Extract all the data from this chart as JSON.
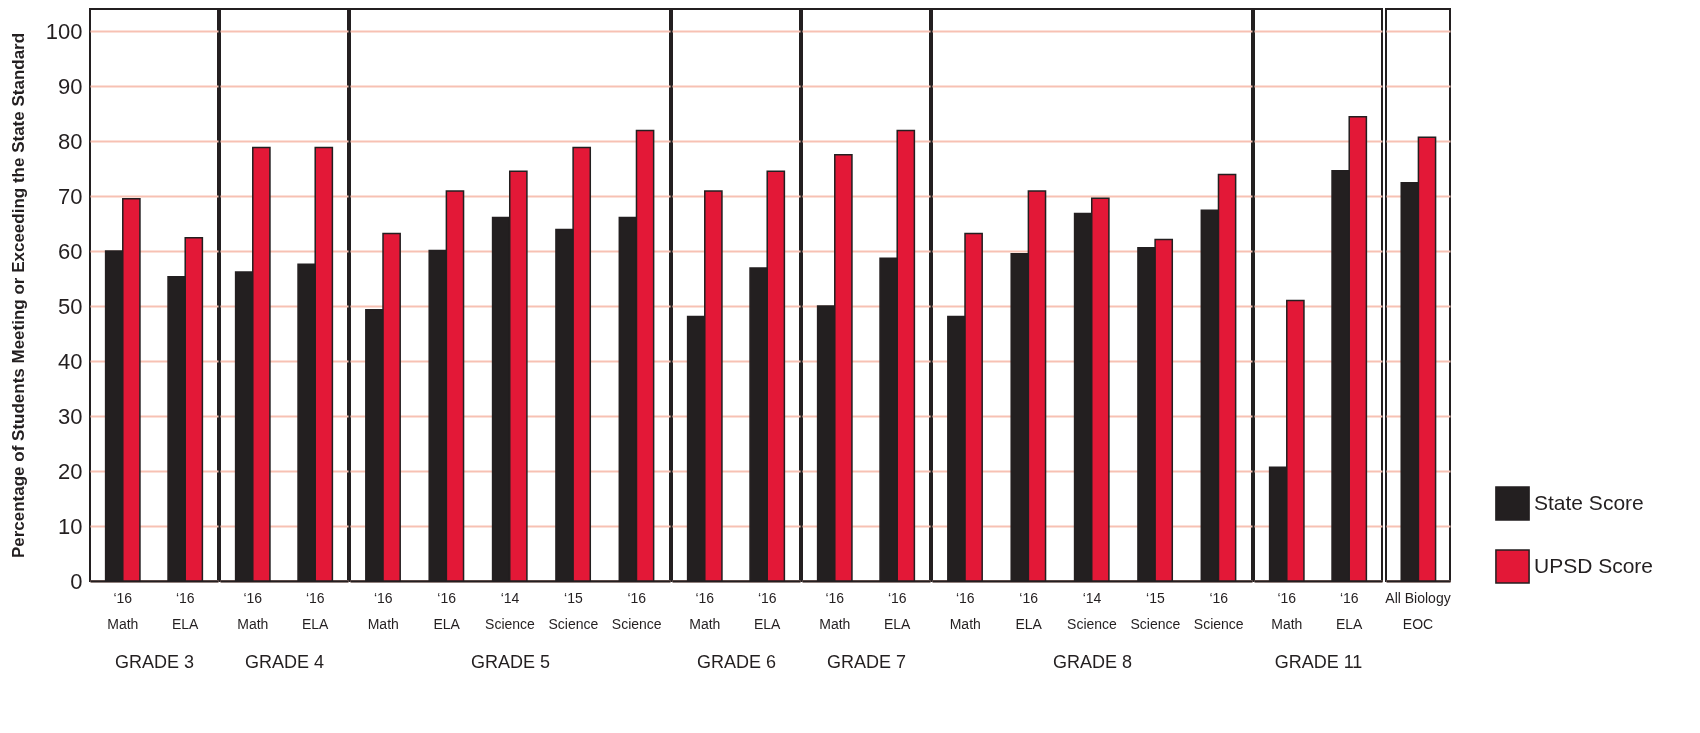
{
  "chart_data": [
    {
      "type": "bar",
      "xlabel": "GRADE 3",
      "ylabel": "Percentage of Students Meeting or Exceeding the State Standard",
      "categories": [
        "‘16\nMath",
        "‘16\nELA"
      ],
      "ylim": [
        0,
        104
      ],
      "yticks": [
        0,
        10,
        20,
        30,
        40,
        50,
        60,
        70,
        80,
        90,
        100
      ],
      "grid": "y",
      "series": [
        {
          "color": "#231f20",
          "values": [
            60,
            55.3
          ]
        },
        {
          "color": "#e31837",
          "values": [
            69.5,
            62.4
          ]
        }
      ]
    },
    {
      "type": "bar",
      "xlabel": "GRADE 4",
      "categories": [
        "‘16\nMath",
        "‘16\nELA"
      ],
      "ylim": [
        0,
        104
      ],
      "yticks": [
        0,
        10,
        20,
        30,
        40,
        50,
        60,
        70,
        80,
        90,
        100
      ],
      "grid": "y",
      "tick_labels": "x",
      "series": [
        {
          "color": "#231f20",
          "values": [
            56.2,
            57.6
          ]
        },
        {
          "color": "#e31837",
          "values": [
            78.8,
            78.8
          ]
        }
      ]
    },
    {
      "type": "bar",
      "xlabel": "GRADE 5",
      "categories": [
        "‘16\nMath",
        "‘16\nELA",
        "‘14\nScience",
        "‘15\nScience",
        "‘16\nScience"
      ],
      "ylim": [
        0,
        104
      ],
      "yticks": [
        0,
        10,
        20,
        30,
        40,
        50,
        60,
        70,
        80,
        90,
        100
      ],
      "grid": "y",
      "tick_labels": "x",
      "series": [
        {
          "color": "#231f20",
          "values": [
            49.3,
            60.1,
            66.1,
            63.9,
            66.1
          ]
        },
        {
          "color": "#e31837",
          "values": [
            63.2,
            70.9,
            74.5,
            78.8,
            81.9
          ]
        }
      ]
    },
    {
      "type": "bar",
      "xlabel": "GRADE 6",
      "categories": [
        "‘16\nMath",
        "‘16\nELA"
      ],
      "ylim": [
        0,
        104
      ],
      "yticks": [
        0,
        10,
        20,
        30,
        40,
        50,
        60,
        70,
        80,
        90,
        100
      ],
      "grid": "y",
      "tick_labels": "x",
      "series": [
        {
          "color": "#231f20",
          "values": [
            48.1,
            56.9
          ]
        },
        {
          "color": "#e31837",
          "values": [
            70.9,
            74.5
          ]
        }
      ]
    },
    {
      "type": "bar",
      "xlabel": "GRADE 7",
      "categories": [
        "‘16\nMath",
        "‘16\nELA"
      ],
      "ylim": [
        0,
        104
      ],
      "yticks": [
        0,
        10,
        20,
        30,
        40,
        50,
        60,
        70,
        80,
        90,
        100
      ],
      "grid": "y",
      "tick_labels": "x",
      "series": [
        {
          "color": "#231f20",
          "values": [
            50,
            58.7
          ]
        },
        {
          "color": "#e31837",
          "values": [
            77.5,
            81.9
          ]
        }
      ]
    },
    {
      "type": "bar",
      "xlabel": "GRADE 8",
      "categories": [
        "‘16\nMath",
        "‘16\nELA",
        "‘14\nScience",
        "‘15\nScience",
        "‘16\nScience"
      ],
      "ylim": [
        0,
        104
      ],
      "yticks": [
        0,
        10,
        20,
        30,
        40,
        50,
        60,
        70,
        80,
        90,
        100
      ],
      "grid": "y",
      "tick_labels": "x",
      "series": [
        {
          "color": "#231f20",
          "values": [
            48.1,
            59.5,
            66.8,
            60.6,
            67.4
          ]
        },
        {
          "color": "#e31837",
          "values": [
            63.2,
            70.9,
            69.6,
            62.1,
            73.9
          ]
        }
      ]
    },
    {
      "type": "bar",
      "xlabel": "GRADE 11",
      "categories": [
        "‘16\nMath",
        "‘16\nELA"
      ],
      "ylim": [
        0,
        104
      ],
      "yticks": [
        0,
        10,
        20,
        30,
        40,
        50,
        60,
        70,
        80,
        90,
        100
      ],
      "grid": "y",
      "tick_labels": "x",
      "series": [
        {
          "color": "#231f20",
          "values": [
            20.7,
            74.6
          ]
        },
        {
          "color": "#e31837",
          "values": [
            51,
            84.4
          ]
        }
      ]
    },
    {
      "type": "bar",
      "categories": [
        "All Biology\nEOC"
      ],
      "ylim": [
        0,
        104
      ],
      "yticks": [
        0,
        10,
        20,
        30,
        40,
        50,
        60,
        70,
        80,
        90,
        100
      ],
      "grid": "y",
      "tick_labels": "x",
      "legend": "right",
      "series": [
        {
          "name": "State Score",
          "color": "#231f20",
          "values": [
            72.4
          ]
        },
        {
          "name": "UPSD Score",
          "color": "#e31837",
          "values": [
            80.7
          ]
        }
      ]
    }
  ]
}
